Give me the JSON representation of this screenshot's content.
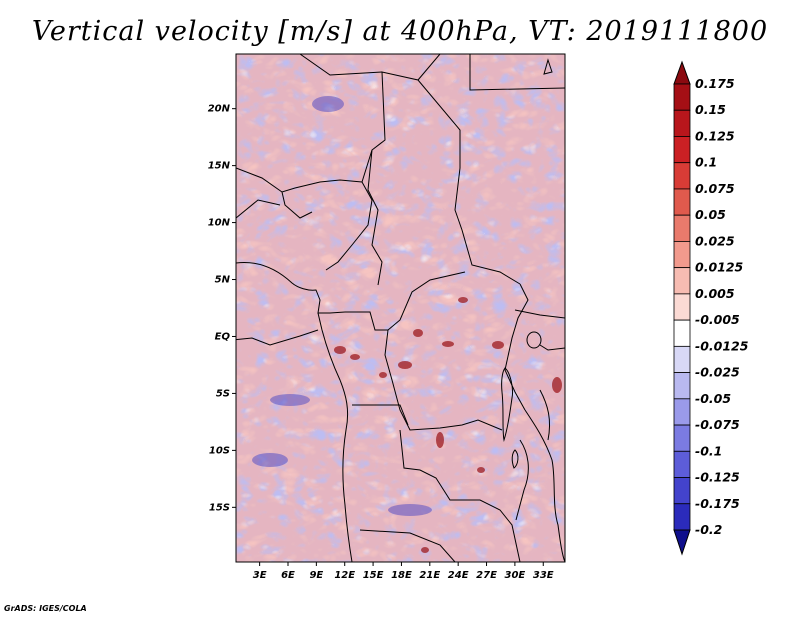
{
  "title": "Vertical velocity [m/s] at 400hPa, VT: 2019111800",
  "credit": "GrADS: IGES/COLA",
  "map": {
    "lat_ticks": [
      {
        "label": "20N",
        "value": 20
      },
      {
        "label": "15N",
        "value": 15
      },
      {
        "label": "10N",
        "value": 10
      },
      {
        "label": "5N",
        "value": 5
      },
      {
        "label": "EQ",
        "value": 0
      },
      {
        "label": "5S",
        "value": -5
      },
      {
        "label": "10S",
        "value": -10
      },
      {
        "label": "15S",
        "value": -15
      }
    ],
    "lon_ticks": [
      {
        "label": "3E",
        "value": 3
      },
      {
        "label": "6E",
        "value": 6
      },
      {
        "label": "9E",
        "value": 9
      },
      {
        "label": "12E",
        "value": 12
      },
      {
        "label": "15E",
        "value": 15
      },
      {
        "label": "18E",
        "value": 18
      },
      {
        "label": "21E",
        "value": 21
      },
      {
        "label": "24E",
        "value": 24
      },
      {
        "label": "27E",
        "value": 27
      },
      {
        "label": "30E",
        "value": 30
      },
      {
        "label": "33E",
        "value": 33
      }
    ],
    "lon_range": [
      0.5,
      35.3
    ],
    "lat_range": [
      -19.8,
      24.8
    ]
  },
  "colorbar": {
    "levels": [
      {
        "label": "0.175",
        "color": "#a50f15"
      },
      {
        "label": "0.15",
        "color": "#b8161c"
      },
      {
        "label": "0.125",
        "color": "#cb2024"
      },
      {
        "label": "0.1",
        "color": "#d83c36"
      },
      {
        "label": "0.075",
        "color": "#e05a4d"
      },
      {
        "label": "0.05",
        "color": "#e97a6c"
      },
      {
        "label": "0.025",
        "color": "#f29a8d"
      },
      {
        "label": "0.0125",
        "color": "#f7bcb2"
      },
      {
        "label": "0.005",
        "color": "#fbdad4"
      },
      {
        "label": "-0.005",
        "color": "#ffffff"
      },
      {
        "label": "-0.0125",
        "color": "#d8d8f6"
      },
      {
        "label": "-0.025",
        "color": "#b9b9f0"
      },
      {
        "label": "-0.05",
        "color": "#9a9aea"
      },
      {
        "label": "-0.075",
        "color": "#7b7be2"
      },
      {
        "label": "-0.1",
        "color": "#5d5dd9"
      },
      {
        "label": "-0.125",
        "color": "#4343cc"
      },
      {
        "label": "-0.175",
        "color": "#2b2bbb"
      },
      {
        "label": "-0.2",
        "color": "#1a1aa6"
      }
    ],
    "top_arrow_color": "#8b0a10",
    "bottom_arrow_color": "#0f0f8c"
  }
}
